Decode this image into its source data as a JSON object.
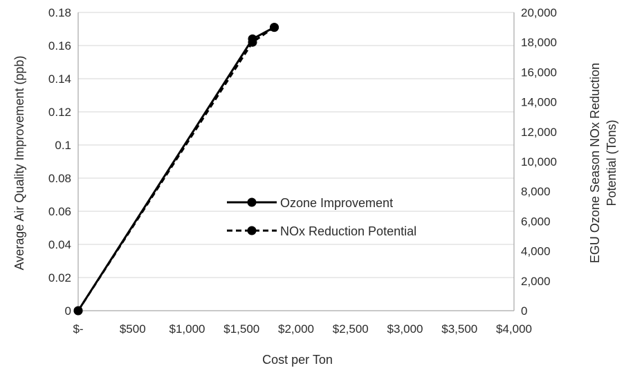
{
  "chart_data": {
    "type": "line",
    "title": "",
    "xlabel": "Cost per Ton",
    "ylabel": "Average Air Quality Improvement (ppb)",
    "y2label_lines": [
      "EGU Ozone Season NOx Reduction",
      "Potential (Tons)"
    ],
    "xlim": [
      0,
      4000
    ],
    "ylim": [
      0,
      0.18
    ],
    "y2lim": [
      0,
      20000
    ],
    "x_ticks": [
      0,
      500,
      1000,
      1500,
      2000,
      2500,
      3000,
      3500,
      4000
    ],
    "x_tick_labels": [
      "$-",
      "$500",
      "$1,000",
      "$1,500",
      "$2,000",
      "$2,500",
      "$3,000",
      "$3,500",
      "$4,000"
    ],
    "y_ticks": [
      0,
      0.02,
      0.04,
      0.06,
      0.08,
      0.1,
      0.12,
      0.14,
      0.16,
      0.18
    ],
    "y_tick_labels": [
      "0",
      "0.02",
      "0.04",
      "0.06",
      "0.08",
      "0.1",
      "0.12",
      "0.14",
      "0.16",
      "0.18"
    ],
    "y2_ticks": [
      0,
      2000,
      4000,
      6000,
      8000,
      10000,
      12000,
      14000,
      16000,
      18000,
      20000
    ],
    "y2_tick_labels": [
      "0",
      "2,000",
      "4,000",
      "6,000",
      "8,000",
      "10,000",
      "12,000",
      "14,000",
      "16,000",
      "18,000",
      "20,000"
    ],
    "grid": true,
    "legend_position": "center-right",
    "series": [
      {
        "name": "Ozone Improvement",
        "axis": "left",
        "style": "solid",
        "color": "#000000",
        "x": [
          0,
          1600,
          1800
        ],
        "values": [
          0,
          0.164,
          0.171
        ]
      },
      {
        "name": "NOx Reduction Potential",
        "axis": "right",
        "style": "dashed",
        "color": "#000000",
        "x": [
          0,
          1600,
          1800
        ],
        "values": [
          0,
          18000,
          19000
        ]
      }
    ]
  }
}
